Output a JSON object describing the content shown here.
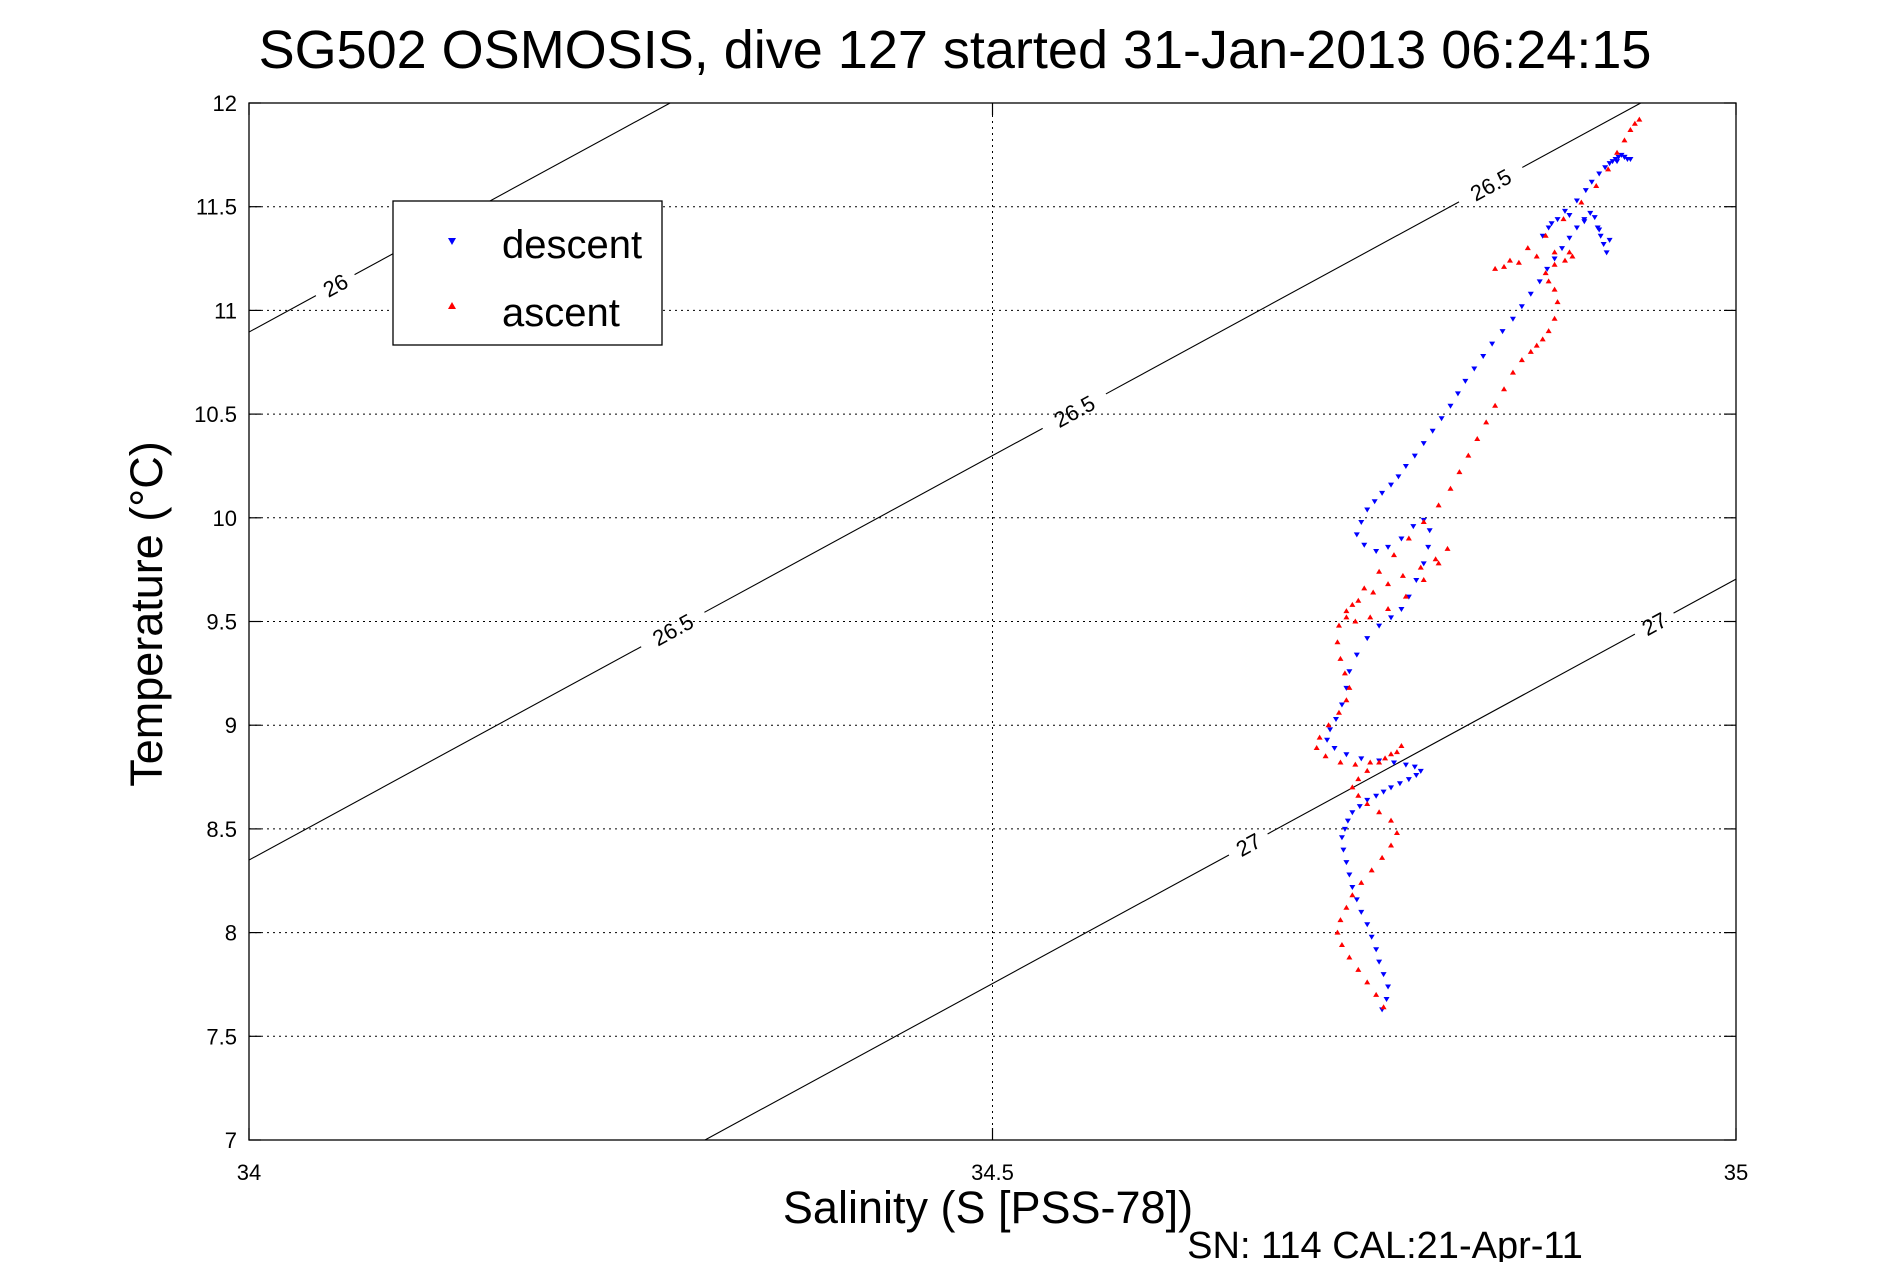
{
  "chart_data": {
    "type": "scatter",
    "title": "SG502 OSMOSIS, dive 127 started 31-Jan-2013 06:24:15",
    "xlabel": "Salinity (S [PSS-78])",
    "ylabel": "Temperature (°C)",
    "footer": "SN: 114  CAL:21-Apr-11",
    "xlim": [
      34,
      35
    ],
    "ylim": [
      7,
      12
    ],
    "xticks": [
      34,
      34.5,
      35
    ],
    "xtick_labels": [
      "34",
      "34.5",
      "35"
    ],
    "yticks": [
      7,
      7.5,
      8,
      8.5,
      9,
      9.5,
      10,
      10.5,
      11,
      11.5,
      12
    ],
    "ytick_labels": [
      "7",
      "7.5",
      "8",
      "8.5",
      "9",
      "9.5",
      "10",
      "10.5",
      "11",
      "11.5",
      "12"
    ],
    "grid": true,
    "legend_position": "top-left",
    "series": [
      {
        "name": "descent",
        "color": "#0000ff",
        "marker": "triangle-down",
        "x": [
          34.762,
          34.765,
          34.766,
          34.763,
          34.76,
          34.758,
          34.755,
          34.752,
          34.748,
          34.745,
          34.742,
          34.74,
          34.738,
          34.736,
          34.735,
          34.737,
          34.739,
          34.742,
          34.747,
          34.752,
          34.758,
          34.763,
          34.768,
          34.774,
          34.78,
          34.785,
          34.788,
          34.784,
          34.778,
          34.77,
          34.76,
          34.748,
          34.738,
          34.73,
          34.725,
          34.727,
          34.731,
          34.735,
          34.738,
          34.74,
          34.745,
          34.752,
          34.76,
          34.768,
          34.775,
          34.78,
          34.785,
          34.79,
          34.793,
          34.794,
          34.79,
          34.783,
          34.775,
          34.766,
          34.758,
          34.75,
          34.745,
          34.748,
          34.752,
          34.757,
          34.762,
          34.768,
          34.773,
          34.778,
          34.784,
          34.79,
          34.796,
          34.802,
          34.808,
          34.813,
          34.818,
          34.824,
          34.83,
          34.836,
          34.843,
          34.85,
          34.856,
          34.862,
          34.868,
          34.873,
          34.878,
          34.883,
          34.888,
          34.893,
          34.898,
          34.902,
          34.905,
          34.907,
          34.909,
          34.911,
          34.913,
          34.915,
          34.908,
          34.898,
          34.888,
          34.88,
          34.874,
          34.87,
          34.876,
          34.885,
          34.893,
          34.899,
          34.903,
          34.908,
          34.912,
          34.915,
          34.917,
          34.919,
          34.921,
          34.923,
          34.925,
          34.927,
          34.929,
          34.925,
          34.92
        ],
        "y": [
          7.63,
          7.68,
          7.74,
          7.8,
          7.86,
          7.92,
          7.98,
          8.04,
          8.1,
          8.16,
          8.22,
          8.28,
          8.34,
          8.4,
          8.46,
          8.5,
          8.54,
          8.58,
          8.61,
          8.64,
          8.66,
          8.68,
          8.7,
          8.72,
          8.74,
          8.76,
          8.78,
          8.8,
          8.81,
          8.82,
          8.83,
          8.84,
          8.86,
          8.89,
          8.93,
          8.98,
          9.03,
          9.1,
          9.18,
          9.26,
          9.34,
          9.42,
          9.48,
          9.52,
          9.56,
          9.62,
          9.7,
          9.78,
          9.86,
          9.94,
          9.99,
          9.96,
          9.9,
          9.86,
          9.84,
          9.87,
          9.92,
          9.98,
          10.04,
          10.08,
          10.12,
          10.16,
          10.2,
          10.25,
          10.3,
          10.36,
          10.42,
          10.48,
          10.54,
          10.6,
          10.66,
          10.72,
          10.78,
          10.84,
          10.9,
          10.96,
          11.02,
          11.08,
          11.14,
          11.2,
          11.25,
          11.3,
          11.35,
          11.4,
          11.44,
          11.47,
          11.45,
          11.4,
          11.36,
          11.32,
          11.28,
          11.34,
          11.39,
          11.43,
          11.46,
          11.44,
          11.4,
          11.36,
          11.42,
          11.48,
          11.53,
          11.58,
          11.62,
          11.66,
          11.69,
          11.71,
          11.72,
          11.73,
          11.74,
          11.75,
          11.74,
          11.73,
          11.73,
          11.74,
          11.72
        ]
      },
      {
        "name": "ascent",
        "color": "#ff0000",
        "marker": "triangle-up",
        "x": [
          34.763,
          34.758,
          34.752,
          34.746,
          34.74,
          34.735,
          34.732,
          34.734,
          34.738,
          34.742,
          34.748,
          34.755,
          34.762,
          34.768,
          34.772,
          34.768,
          34.76,
          34.752,
          34.746,
          34.742,
          34.746,
          34.752,
          34.76,
          34.768,
          34.775,
          34.772,
          34.764,
          34.754,
          34.744,
          34.734,
          34.724,
          34.718,
          34.72,
          34.726,
          34.733,
          34.738,
          34.74,
          34.737,
          34.734,
          34.732,
          34.733,
          34.738,
          34.746,
          34.756,
          34.766,
          34.776,
          34.788,
          34.798,
          34.806,
          34.8,
          34.79,
          34.778,
          34.766,
          34.754,
          34.744,
          34.738,
          34.742,
          34.75,
          34.76,
          34.77,
          34.78,
          34.79,
          34.8,
          34.808,
          34.814,
          34.82,
          34.826,
          34.832,
          34.838,
          34.844,
          34.85,
          34.856,
          34.862,
          34.866,
          34.87,
          34.874,
          34.878,
          34.88,
          34.878,
          34.874,
          34.872,
          34.878,
          34.885,
          34.89,
          34.888,
          34.878,
          34.866,
          34.854,
          34.844,
          34.838,
          34.848,
          34.86,
          34.872,
          34.884,
          34.896,
          34.906,
          34.914,
          34.92,
          34.925,
          34.929,
          34.932,
          34.935
        ],
        "y": [
          7.64,
          7.7,
          7.76,
          7.82,
          7.88,
          7.94,
          8.0,
          8.06,
          8.12,
          8.18,
          8.24,
          8.3,
          8.36,
          8.42,
          8.48,
          8.54,
          8.58,
          8.62,
          8.66,
          8.7,
          8.74,
          8.78,
          8.82,
          8.86,
          8.9,
          8.87,
          8.84,
          8.82,
          8.81,
          8.82,
          8.85,
          8.89,
          8.94,
          9.0,
          9.06,
          9.12,
          9.18,
          9.25,
          9.32,
          9.4,
          9.48,
          9.55,
          9.6,
          9.64,
          9.68,
          9.72,
          9.76,
          9.8,
          9.85,
          9.78,
          9.7,
          9.62,
          9.56,
          9.52,
          9.5,
          9.52,
          9.58,
          9.66,
          9.74,
          9.82,
          9.9,
          9.98,
          10.06,
          10.14,
          10.22,
          10.3,
          10.38,
          10.46,
          10.54,
          10.62,
          10.7,
          10.76,
          10.8,
          10.83,
          10.86,
          10.9,
          10.96,
          11.04,
          11.1,
          11.14,
          11.18,
          11.22,
          11.24,
          11.26,
          11.28,
          11.28,
          11.26,
          11.23,
          11.21,
          11.2,
          11.24,
          11.3,
          11.36,
          11.44,
          11.52,
          11.6,
          11.68,
          11.76,
          11.82,
          11.87,
          11.9,
          11.92
        ]
      }
    ],
    "isopycnals": [
      {
        "label": "26",
        "labels": [
          {
            "x": 34.058
          }
        ]
      },
      {
        "label": "26.5",
        "labels": [
          {
            "x": 34.285
          },
          {
            "x": 34.555
          },
          {
            "x": 34.835
          }
        ]
      },
      {
        "label": "27",
        "labels": [
          {
            "x": 34.672
          },
          {
            "x": 34.945
          }
        ]
      }
    ]
  }
}
